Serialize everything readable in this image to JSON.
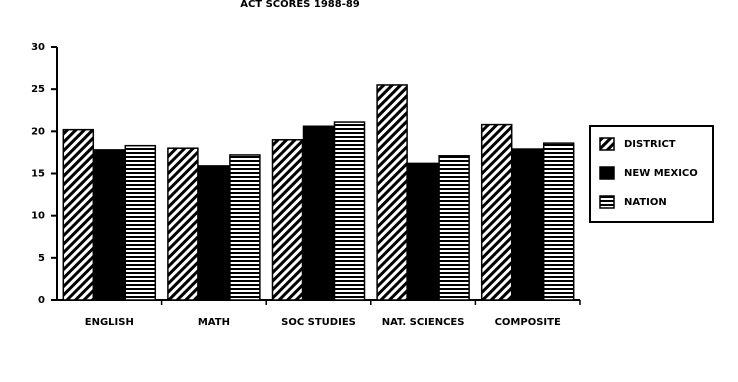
{
  "chart_data": {
    "type": "bar",
    "title": "ACT SCORES 1988-89",
    "categories": [
      "ENGLISH",
      "MATH",
      "SOC STUDIES",
      "NAT. SCIENCES",
      "COMPOSITE"
    ],
    "series": [
      {
        "name": "DISTRICT",
        "color": "#000000",
        "pattern": "diagonal",
        "values": [
          20.2,
          18.0,
          19.0,
          25.5,
          20.8
        ]
      },
      {
        "name": "NEW MEXICO",
        "color": "#000000",
        "pattern": "solid",
        "values": [
          17.8,
          15.9,
          20.6,
          16.2,
          17.9
        ]
      },
      {
        "name": "NATION",
        "color": "#000000",
        "pattern": "horizontal",
        "values": [
          18.3,
          17.2,
          21.1,
          17.1,
          18.6
        ]
      }
    ],
    "ylim": [
      0,
      30
    ],
    "yticks": [
      0,
      5,
      10,
      15,
      20,
      25,
      30
    ],
    "grid": false,
    "legend": "right"
  }
}
